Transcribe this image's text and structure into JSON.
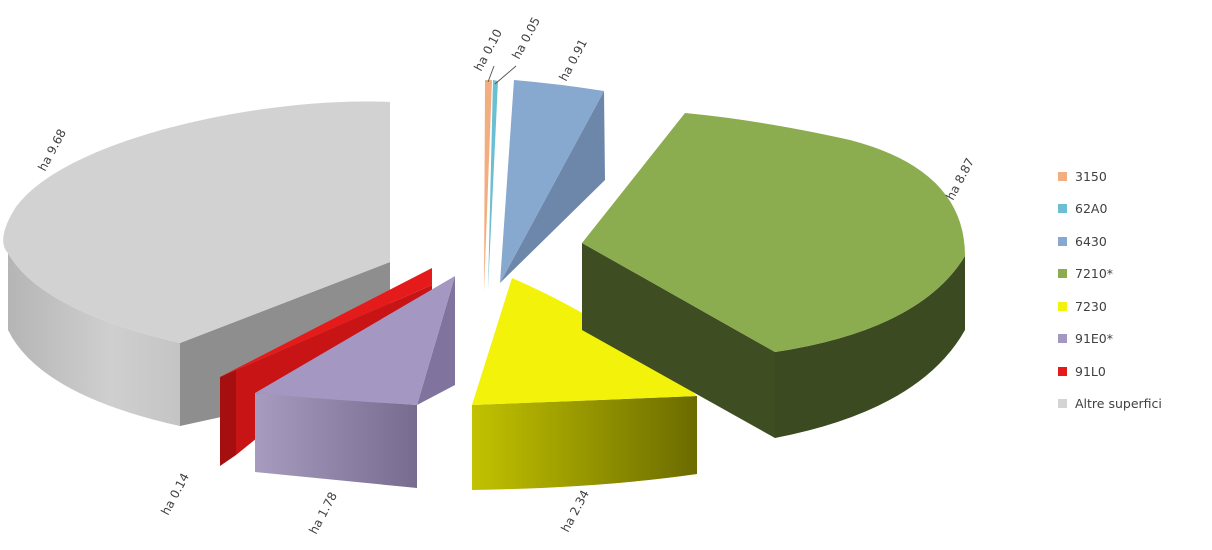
{
  "chart_data": {
    "type": "pie",
    "style": "3d-exploded",
    "categories": [
      "3150",
      "62A0",
      "6430",
      "7210*",
      "7230",
      "91E0*",
      "91L0",
      "Altre superfici"
    ],
    "values": [
      0.1,
      0.05,
      0.91,
      8.87,
      2.34,
      1.78,
      0.14,
      9.68
    ],
    "data_labels": [
      "ha 0.10",
      "ha 0.05",
      "ha 0.91",
      "ha 8.87",
      "ha 2.34",
      "ha 1.78",
      "ha 0.14",
      "ha 9.68"
    ],
    "colors": [
      "#f3ae7f",
      "#6cbfd3",
      "#87a8cf",
      "#8cac50",
      "#f2f20a",
      "#a497c1",
      "#e51a1a",
      "#d4d4d4"
    ],
    "legend_position": "right",
    "title": ""
  }
}
